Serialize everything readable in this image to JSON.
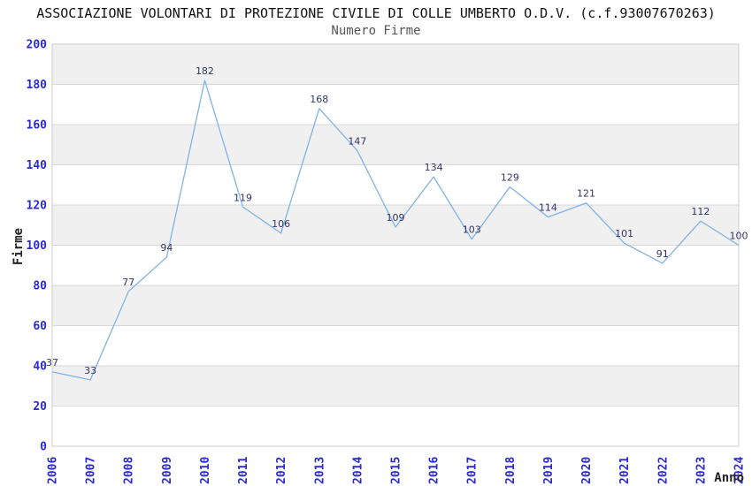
{
  "chart_data": {
    "type": "line",
    "title": "ASSOCIAZIONE VOLONTARI DI PROTEZIONE CIVILE DI COLLE UMBERTO O.D.V. (c.f.93007670263)",
    "subtitle": "Numero Firme",
    "xlabel": "Anno",
    "ylabel": "Firme",
    "categories": [
      "2006",
      "2007",
      "2008",
      "2009",
      "2010",
      "2011",
      "2012",
      "2013",
      "2014",
      "2015",
      "2016",
      "2017",
      "2018",
      "2019",
      "2020",
      "2021",
      "2022",
      "2023",
      "2024"
    ],
    "series": [
      {
        "name": "Numero Firme",
        "values": [
          37,
          33,
          77,
          94,
          182,
          119,
          106,
          168,
          147,
          109,
          134,
          103,
          129,
          114,
          121,
          101,
          91,
          112,
          100
        ]
      }
    ],
    "ylim": [
      0,
      200
    ],
    "y_tick_step": 20,
    "grid": true,
    "bands_alternating": true,
    "legend_position": "none",
    "show_data_labels": true,
    "colors": {
      "line": "#7fb2e6",
      "tick_label": "#2a2ad0",
      "data_label": "#333366",
      "band_fill": "#f0f0f0",
      "grid_line": "#d8d8d8",
      "plot_border": "#cccccc",
      "title": "#111111",
      "subtitle": "#555555",
      "axis_label": "#222222",
      "background": "#ffffff"
    }
  }
}
